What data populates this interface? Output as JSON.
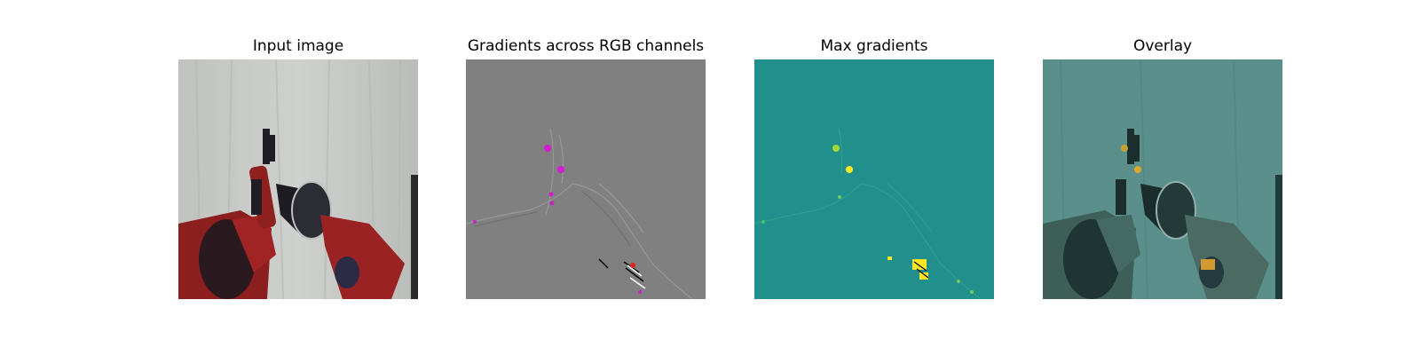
{
  "figure": {
    "panels": [
      {
        "title": "Input image"
      },
      {
        "title": "Gradients across RGB channels"
      },
      {
        "title": "Max gradients"
      },
      {
        "title": "Overlay"
      }
    ]
  },
  "colors": {
    "background": "#ffffff",
    "curtain": "#c5c7c4",
    "robot_red": "#8c1e1e",
    "gradient_gray": "#808080",
    "viridis_teal": "#21908d",
    "viridis_yellow": "#fde725",
    "overlay_tint": "#2f7f7b"
  }
}
